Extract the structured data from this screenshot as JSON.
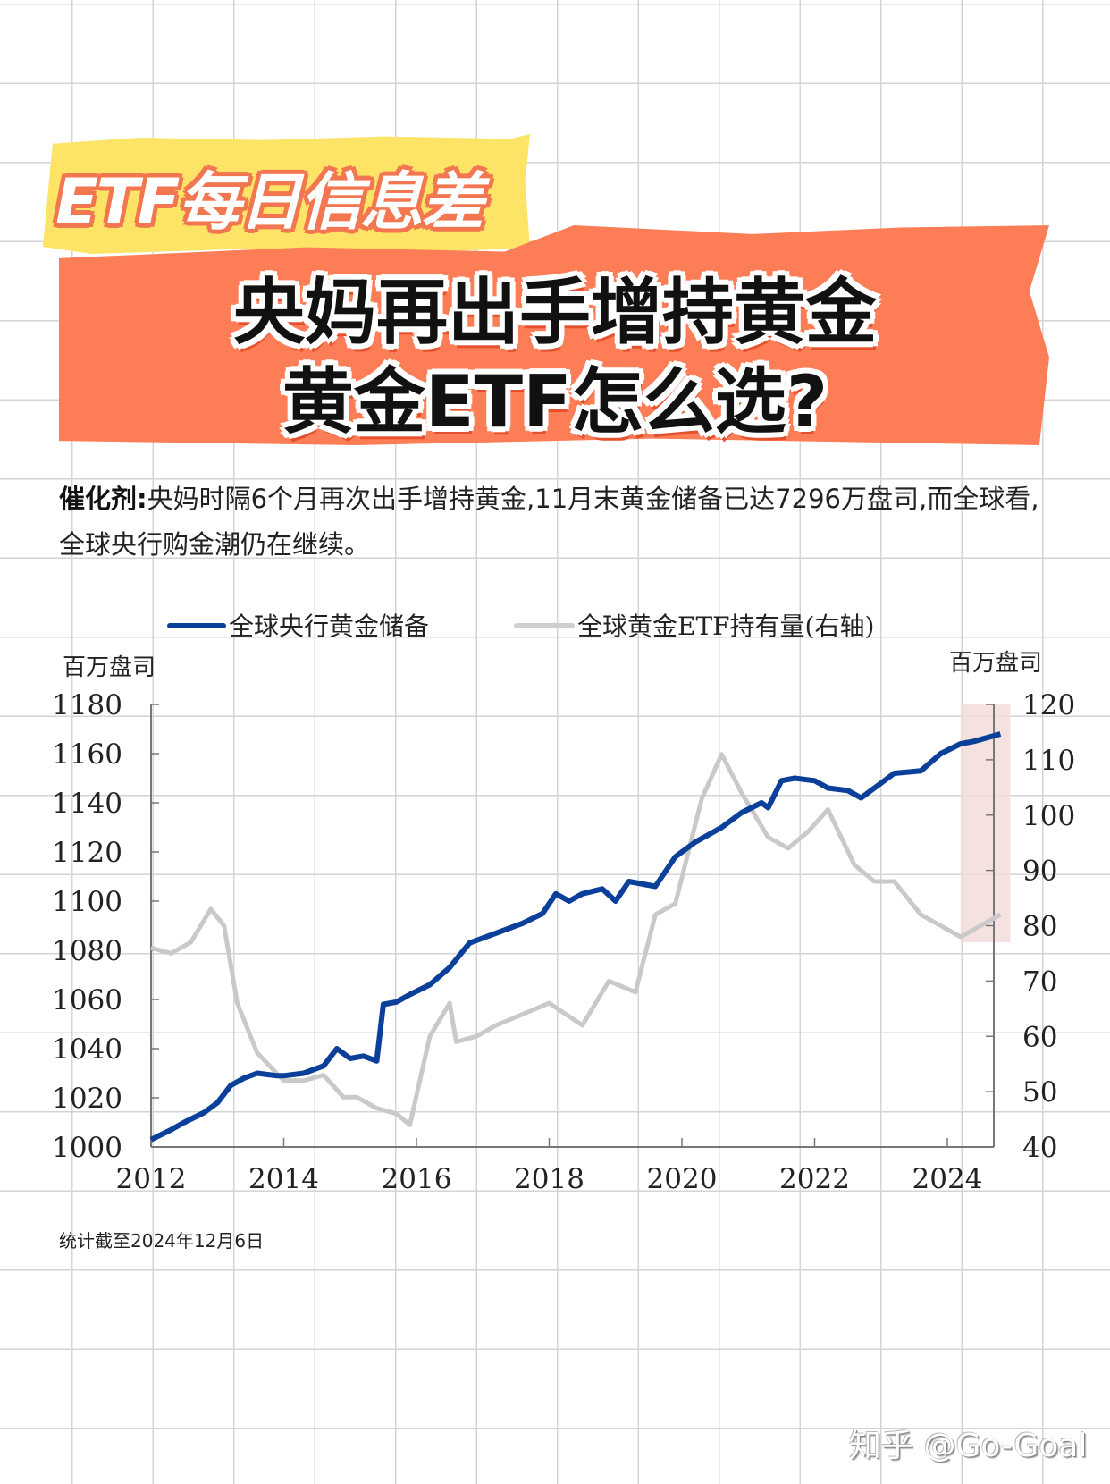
{
  "header": {
    "badge": "ETF每日信息差",
    "title_line1": "央妈再出手增持黄金",
    "title_line2": "黄金ETF怎么选?"
  },
  "body": {
    "label": "催化剂:",
    "text": "央妈时隔6个月再次出手增持黄金,11月末黄金储备已达7296万盘司,而全球看,全球央行购金潮仍在继续。"
  },
  "footnote": "统计截至2024年12月6日",
  "watermark": "知乎 @Go-Goal",
  "colors": {
    "reserves_line": "#0a3f9a",
    "etf_line": "#c9c9c9",
    "highlight_band": "#f4dcdc",
    "yellow_banner": "#fde366",
    "orange_banner": "#fd7d57"
  },
  "chart_data": {
    "type": "line",
    "title": "",
    "legend": [
      "全球央行黄金储备",
      "全球黄金ETF持有量(右轴)"
    ],
    "legend_position": "top",
    "left_axis": {
      "label": "百万盘司",
      "ticks": [
        1000,
        1020,
        1040,
        1060,
        1080,
        1100,
        1120,
        1140,
        1160,
        1180
      ],
      "ylim": [
        1000,
        1180
      ]
    },
    "right_axis": {
      "label": "百万盘司",
      "ticks": [
        40,
        50,
        60,
        70,
        80,
        90,
        100,
        110,
        120
      ],
      "ylim": [
        40,
        120
      ]
    },
    "x_axis": {
      "ticks": [
        "2012",
        "2014",
        "2016",
        "2018",
        "2020",
        "2022",
        "2024"
      ],
      "xlim": [
        2012,
        2024.95
      ]
    },
    "grid": false,
    "highlight_band": {
      "x_from": 2024.2,
      "x_to": 2024.95,
      "y_right_from": 77,
      "y_right_to": 120
    },
    "series": [
      {
        "name": "全球央行黄金储备",
        "axis": "left",
        "x": [
          2012.0,
          2012.3,
          2012.5,
          2012.8,
          2013.0,
          2013.2,
          2013.4,
          2013.6,
          2013.9,
          2014.0,
          2014.3,
          2014.6,
          2014.8,
          2015.0,
          2015.2,
          2015.4,
          2015.5,
          2015.7,
          2015.9,
          2016.2,
          2016.5,
          2016.8,
          2017.2,
          2017.6,
          2017.9,
          2018.1,
          2018.3,
          2018.5,
          2018.8,
          2019.0,
          2019.2,
          2019.6,
          2019.9,
          2020.2,
          2020.6,
          2020.9,
          2021.2,
          2021.3,
          2021.5,
          2021.7,
          2022.0,
          2022.2,
          2022.5,
          2022.7,
          2023.0,
          2023.2,
          2023.6,
          2023.9,
          2024.2,
          2024.4,
          2024.8
        ],
        "values": [
          1003,
          1007,
          1010,
          1014,
          1018,
          1025,
          1028,
          1030,
          1029,
          1029,
          1030,
          1033,
          1040,
          1036,
          1037,
          1035,
          1058,
          1059,
          1062,
          1066,
          1073,
          1083,
          1087,
          1091,
          1095,
          1103,
          1100,
          1103,
          1105,
          1100,
          1108,
          1106,
          1118,
          1124,
          1130,
          1136,
          1140,
          1138,
          1149,
          1150,
          1149,
          1146,
          1145,
          1142,
          1148,
          1152,
          1153,
          1160,
          1164,
          1165,
          1168
        ]
      },
      {
        "name": "全球黄金ETF持有量(右轴)",
        "axis": "right",
        "x": [
          2012.0,
          2012.3,
          2012.6,
          2012.9,
          2013.1,
          2013.3,
          2013.6,
          2014.0,
          2014.3,
          2014.6,
          2014.9,
          2015.1,
          2015.4,
          2015.7,
          2015.9,
          2016.2,
          2016.5,
          2016.6,
          2016.9,
          2017.2,
          2017.6,
          2018.0,
          2018.5,
          2018.9,
          2019.3,
          2019.6,
          2019.9,
          2020.3,
          2020.6,
          2020.9,
          2021.3,
          2021.6,
          2021.9,
          2022.2,
          2022.6,
          2022.9,
          2023.2,
          2023.6,
          2023.9,
          2024.2,
          2024.5,
          2024.8
        ],
        "values": [
          76,
          75,
          77,
          83,
          80,
          66,
          57,
          52,
          52,
          53,
          49,
          49,
          47,
          46,
          44,
          60,
          66,
          59,
          60,
          62,
          64,
          66,
          62,
          70,
          68,
          82,
          84,
          103,
          111,
          104,
          96,
          94,
          97,
          101,
          91,
          88,
          88,
          82,
          80,
          78,
          80,
          82
        ]
      }
    ]
  }
}
